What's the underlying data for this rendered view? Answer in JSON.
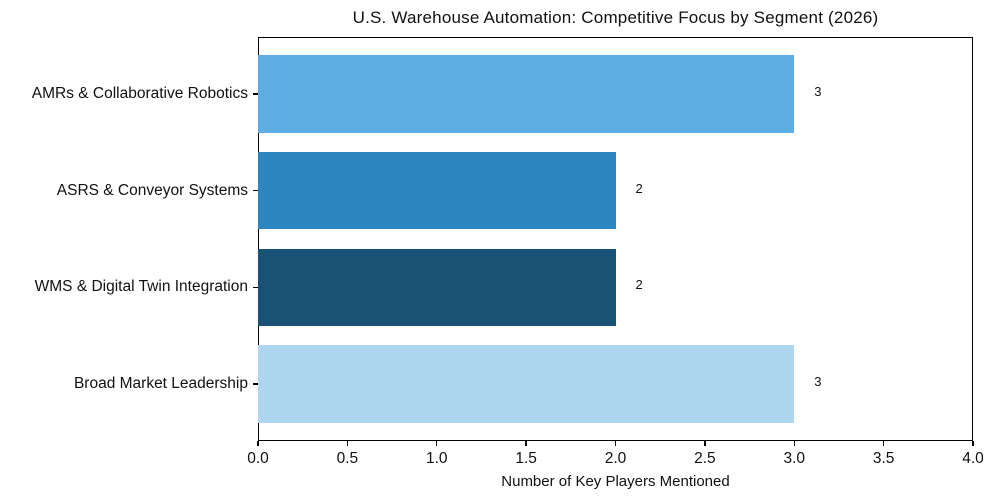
{
  "chart_data": {
    "type": "bar",
    "orientation": "horizontal",
    "title": "U.S. Warehouse Automation: Competitive Focus by Segment (2026)",
    "categories": [
      "AMRs & Collaborative Robotics",
      "ASRS & Conveyor Systems",
      "WMS & Digital Twin Integration",
      "Broad Market Leadership"
    ],
    "values": [
      3,
      2,
      2,
      3
    ],
    "bar_labels": [
      "3",
      "2",
      "2",
      "3"
    ],
    "bar_colors": [
      "#5DADE2",
      "#2E86C1",
      "#1A5276",
      "#AED6F1"
    ],
    "xlabel": "Number of Key Players Mentioned",
    "xlim": [
      0,
      4
    ],
    "xticks": [
      "0.0",
      "0.5",
      "1.0",
      "1.5",
      "2.0",
      "2.5",
      "3.0",
      "3.5",
      "4.0"
    ],
    "xtick_values": [
      0,
      0.5,
      1,
      1.5,
      2,
      2.5,
      3,
      3.5,
      4
    ],
    "grid": false,
    "legend_position": "none",
    "text_color": "#111111",
    "frame_color": "#000000",
    "background_color": "#ffffff"
  }
}
